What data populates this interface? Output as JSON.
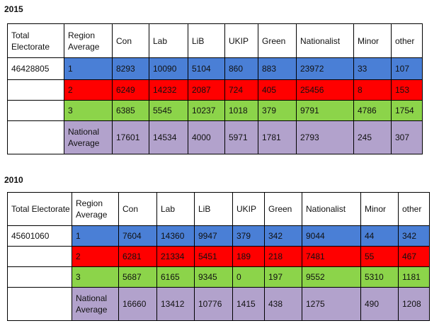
{
  "tables": [
    {
      "year": "2015",
      "headers": [
        "Total Electorate",
        "Region Average",
        "Con",
        "Lab",
        "LiB",
        "UKIP",
        "Green",
        "Nationalist",
        "Minor",
        "other"
      ],
      "electorate": "46428805",
      "rows": [
        {
          "label": "1",
          "values": [
            "8293",
            "10090",
            "5104",
            "860",
            "883",
            "23972",
            "33",
            "107"
          ],
          "color": "#4a7fd6"
        },
        {
          "label": "2",
          "values": [
            "6249",
            "14232",
            "2087",
            "724",
            "405",
            "25456",
            "8",
            "153"
          ],
          "color": "#ff0000"
        },
        {
          "label": "3",
          "values": [
            "6385",
            "5545",
            "10237",
            "1018",
            "379",
            "9791",
            "4786",
            "1754"
          ],
          "color": "#8cd44a"
        },
        {
          "label": "National Average",
          "values": [
            "17601",
            "14534",
            "4000",
            "5971",
            "1781",
            "2793",
            "245",
            "307"
          ],
          "color": "#b2a2cc"
        }
      ]
    },
    {
      "year": "2010",
      "headers": [
        "Total Electorate",
        "Region Average",
        "Con",
        "Lab",
        "LiB",
        "UKIP",
        "Green",
        "Nationalist",
        "Minor",
        "other"
      ],
      "electorate": "45601060",
      "rows": [
        {
          "label": "1",
          "values": [
            "7604",
            "14360",
            "9947",
            "379",
            "342",
            "9044",
            "44",
            "342"
          ],
          "color": "#4a7fd6"
        },
        {
          "label": "2",
          "values": [
            "6281",
            "21334",
            "5451",
            "189",
            "218",
            "7481",
            "55",
            "467"
          ],
          "color": "#ff0000"
        },
        {
          "label": "3",
          "values": [
            "5687",
            "6165",
            "9345",
            "0",
            "197",
            "9552",
            "5310",
            "1181"
          ],
          "color": "#8cd44a"
        },
        {
          "label": "National Average",
          "values": [
            "16660",
            "13412",
            "10776",
            "1415",
            "438",
            "1275",
            "490",
            "1208"
          ],
          "color": "#b2a2cc"
        }
      ]
    }
  ]
}
